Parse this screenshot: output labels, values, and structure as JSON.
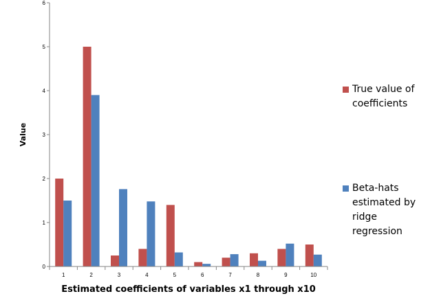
{
  "chart_data": {
    "type": "bar",
    "categories": [
      "1",
      "2",
      "3",
      "4",
      "5",
      "6",
      "7",
      "8",
      "9",
      "10"
    ],
    "series": [
      {
        "name": "True value of coefficients",
        "color": "#c0504d",
        "values": [
          2,
          5,
          0.25,
          0.4,
          1.4,
          0.1,
          0.2,
          0.3,
          0.4,
          0.5
        ]
      },
      {
        "name": "Beta-hats estimated by ridge regression",
        "color": "#4f81bd",
        "values": [
          1.5,
          3.9,
          1.76,
          1.48,
          0.32,
          0.06,
          0.28,
          0.13,
          0.52,
          0.27
        ]
      }
    ],
    "xlabel": "Estimated coefficients of variables x1 through x10",
    "ylabel": "Value",
    "ylim": [
      0,
      6
    ],
    "yticks": [
      "0",
      "1",
      "2",
      "3",
      "4",
      "5",
      "6"
    ],
    "grid": false,
    "legend_position": "right"
  }
}
